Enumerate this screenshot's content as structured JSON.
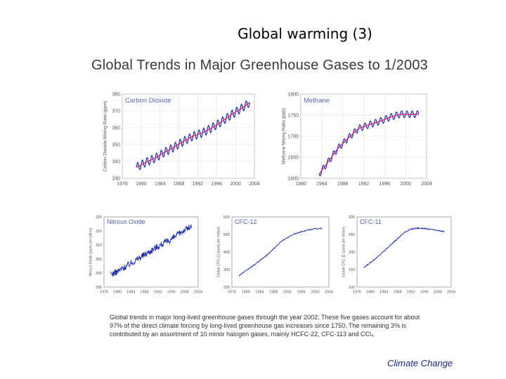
{
  "slide": {
    "title": "Global warming (3)",
    "heading": "Global Trends in Major Greenhouse Gases to 1/2003",
    "caption_lines": [
      "Global trends in major long-lived greenhouse gases through the year 2002.  These five gases account for about",
      "97% of the direct climate forcing by long-lived greenhouse gas increases since 1750.  The remaining 3% is",
      "contributed by an assortment of 10 minor halogen gases, mainly HCFC-22, CFC-113 and CCl₄"
    ],
    "footer": "Climate Change"
  },
  "colors": {
    "measured": "#1f2fb0",
    "trend": "#d2207a",
    "axis_text": "#555555",
    "panel_label": "#5566bb"
  },
  "chart_data": [
    {
      "type": "line",
      "panel_label": "Carbon Dioxide",
      "ylabel": "Carbon Dioxide Mixing Ratio (ppm)",
      "xlim": [
        1976,
        2004
      ],
      "ylim": [
        330,
        380
      ],
      "xticks": [
        1976,
        1980,
        1984,
        1988,
        1992,
        1996,
        2000,
        2004
      ],
      "yticks": [
        330,
        340,
        350,
        360,
        370,
        380
      ],
      "grid": true,
      "series": [
        {
          "x": [
            1979,
            1981,
            1983,
            1985,
            1987,
            1989,
            1991,
            1993,
            1995,
            1997,
            1999,
            2001,
            2003
          ],
          "y": [
            336.5,
            339.5,
            342,
            345.5,
            348.5,
            352,
            355,
            357,
            360,
            363.5,
            367.5,
            371,
            375
          ]
        }
      ],
      "seasonal_amplitude": 2.5
    },
    {
      "type": "line",
      "panel_label": "Methane",
      "ylabel": "Methane Mixing Ratio (ppb)",
      "xlim": [
        1980,
        2004
      ],
      "ylim": [
        1600,
        1800
      ],
      "xticks": [
        1980,
        1984,
        1988,
        1992,
        1996,
        2000,
        2004
      ],
      "yticks": [
        1600,
        1650,
        1700,
        1750,
        1800
      ],
      "grid": true,
      "series": [
        {
          "x": [
            1983.5,
            1985,
            1987,
            1989,
            1991,
            1993,
            1995,
            1997,
            1999,
            2001,
            2002.5
          ],
          "y": [
            1610,
            1635,
            1670,
            1695,
            1718,
            1727,
            1735,
            1745,
            1752,
            1752,
            1752
          ]
        }
      ],
      "seasonal_amplitude": 8
    },
    {
      "type": "line",
      "panel_label": "Nitrous Oxide",
      "ylabel": "Nitrous Oxide (parts per billion)",
      "xlim": [
        1976,
        2004
      ],
      "ylim": [
        295,
        320
      ],
      "xticks": [
        1976,
        1980,
        1984,
        1988,
        1992,
        1996,
        2000,
        2004
      ],
      "yticks": [
        295,
        300,
        305,
        310,
        315,
        320
      ],
      "grid": false,
      "series": [
        {
          "x": [
            1978,
            1980,
            1984,
            1988,
            1992,
            1996,
            2000,
            2002
          ],
          "y": [
            299.5,
            300.5,
            303.5,
            306.5,
            309.5,
            312,
            315.5,
            316.5
          ]
        }
      ],
      "noise": 1.2
    },
    {
      "type": "line",
      "panel_label": "CFC-12",
      "ylabel": "Global CFC-12 (parts per trillion)",
      "xlim": [
        1976,
        2004
      ],
      "ylim": [
        200,
        600
      ],
      "xticks": [
        1976,
        1980,
        1984,
        1988,
        1992,
        1996,
        2000,
        2004
      ],
      "yticks": [
        200,
        300,
        400,
        500,
        600
      ],
      "grid": false,
      "series": [
        {
          "x": [
            1978,
            1982,
            1986,
            1990,
            1992,
            1994,
            1996,
            1998,
            2000,
            2002
          ],
          "y": [
            265,
            320,
            380,
            455,
            482,
            502,
            515,
            525,
            532,
            535
          ]
        }
      ],
      "noise": 3
    },
    {
      "type": "line",
      "panel_label": "CFC-11",
      "ylabel": "Global CFC-11 (parts per trillion)",
      "xlim": [
        1976,
        2004
      ],
      "ylim": [
        100,
        300
      ],
      "xticks": [
        1976,
        1980,
        1984,
        1988,
        1992,
        1996,
        2000,
        2004
      ],
      "yticks": [
        100,
        150,
        200,
        250,
        300
      ],
      "grid": false,
      "series": [
        {
          "x": [
            1978,
            1982,
            1986,
            1990,
            1992,
            1994,
            1996,
            1998,
            2000,
            2002
          ],
          "y": [
            155,
            185,
            220,
            255,
            265,
            268,
            267,
            264,
            261,
            258
          ]
        }
      ],
      "noise": 1.5
    }
  ]
}
